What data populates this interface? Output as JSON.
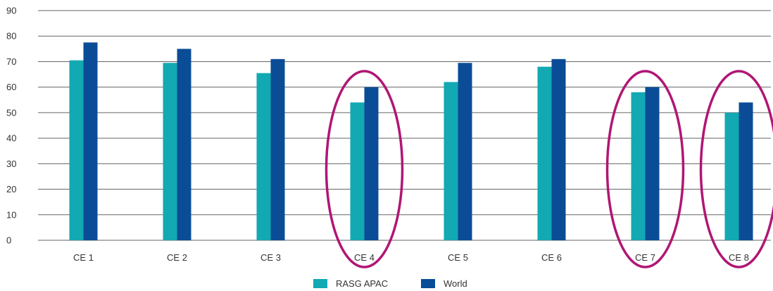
{
  "chart_data": {
    "type": "bar",
    "categories": [
      "CE 1",
      "CE 2",
      "CE 3",
      "CE 4",
      "CE 5",
      "CE 6",
      "CE 7",
      "CE 8"
    ],
    "series": [
      {
        "name": "RASG APAC",
        "values": [
          70.5,
          69.5,
          65.5,
          54,
          62,
          68,
          58,
          50
        ]
      },
      {
        "name": "World",
        "values": [
          77.5,
          75,
          71,
          60,
          69.5,
          71,
          60,
          54
        ]
      }
    ],
    "ylim": [
      0,
      90
    ],
    "yticks": [
      0,
      10,
      20,
      30,
      40,
      50,
      60,
      70,
      80,
      90
    ],
    "grid": true,
    "legend_position": "bottom",
    "highlighted_categories": [
      "CE 4",
      "CE 7",
      "CE 8"
    ],
    "colors": {
      "RASG APAC": "#12a9b3",
      "World": "#0b4c97",
      "highlight": "#b01675",
      "grid": "#666666"
    }
  }
}
